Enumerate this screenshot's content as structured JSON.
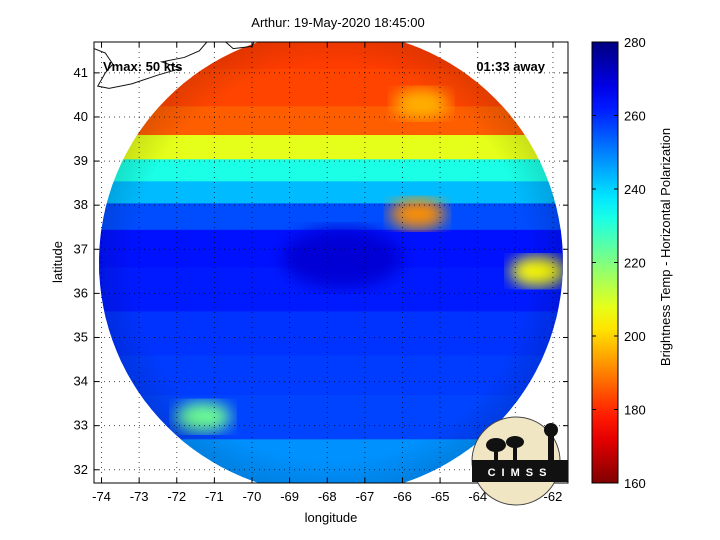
{
  "chart_data": {
    "type": "heatmap",
    "title": "Arthur: 19-May-2020 18:45:00",
    "xlabel": "longitude",
    "ylabel": "latitude",
    "xlim": [
      -74.2,
      -61.6
    ],
    "ylim": [
      31.7,
      41.7
    ],
    "x_ticks": [
      -74,
      -73,
      -72,
      -71,
      -70,
      -69,
      -68,
      -67,
      -66,
      -65,
      -64,
      -63,
      -62
    ],
    "y_ticks": [
      32,
      33,
      34,
      35,
      36,
      37,
      38,
      39,
      40,
      41
    ],
    "grid": true,
    "annotations": {
      "top_left": "Vmax: 50 kts",
      "top_right": "01:33 away"
    },
    "colorbar": {
      "label": "Brightness Temp - Horizontal Polarization",
      "range": [
        160,
        280
      ],
      "ticks": [
        160,
        180,
        200,
        220,
        240,
        260,
        280
      ]
    },
    "swath": {
      "center_lon": -67.9,
      "center_lat": 36.7
    },
    "features": [
      {
        "lon": -65.6,
        "lat": 37.8,
        "value": 192
      },
      {
        "lon": -62.4,
        "lat": 36.5,
        "value": 205
      },
      {
        "lon": -65.5,
        "lat": 40.3,
        "value": 196
      },
      {
        "lon": -71.3,
        "lat": 33.2,
        "value": 222
      },
      {
        "lon": -67.6,
        "lat": 36.8,
        "value": 270
      }
    ],
    "bands": [
      {
        "lat": 41.5,
        "value": 182
      },
      {
        "lat": 40.5,
        "value": 183
      },
      {
        "lat": 39.8,
        "value": 186
      },
      {
        "lat": 39.2,
        "value": 208
      },
      {
        "lat": 38.7,
        "value": 232
      },
      {
        "lat": 38.2,
        "value": 243
      },
      {
        "lat": 37.7,
        "value": 256
      },
      {
        "lat": 37.0,
        "value": 263
      },
      {
        "lat": 36.0,
        "value": 262
      },
      {
        "lat": 35.0,
        "value": 259
      },
      {
        "lat": 34.0,
        "value": 258
      },
      {
        "lat": 33.2,
        "value": 257
      },
      {
        "lat": 32.0,
        "value": 248
      }
    ],
    "logo_text": "CIMSS"
  }
}
